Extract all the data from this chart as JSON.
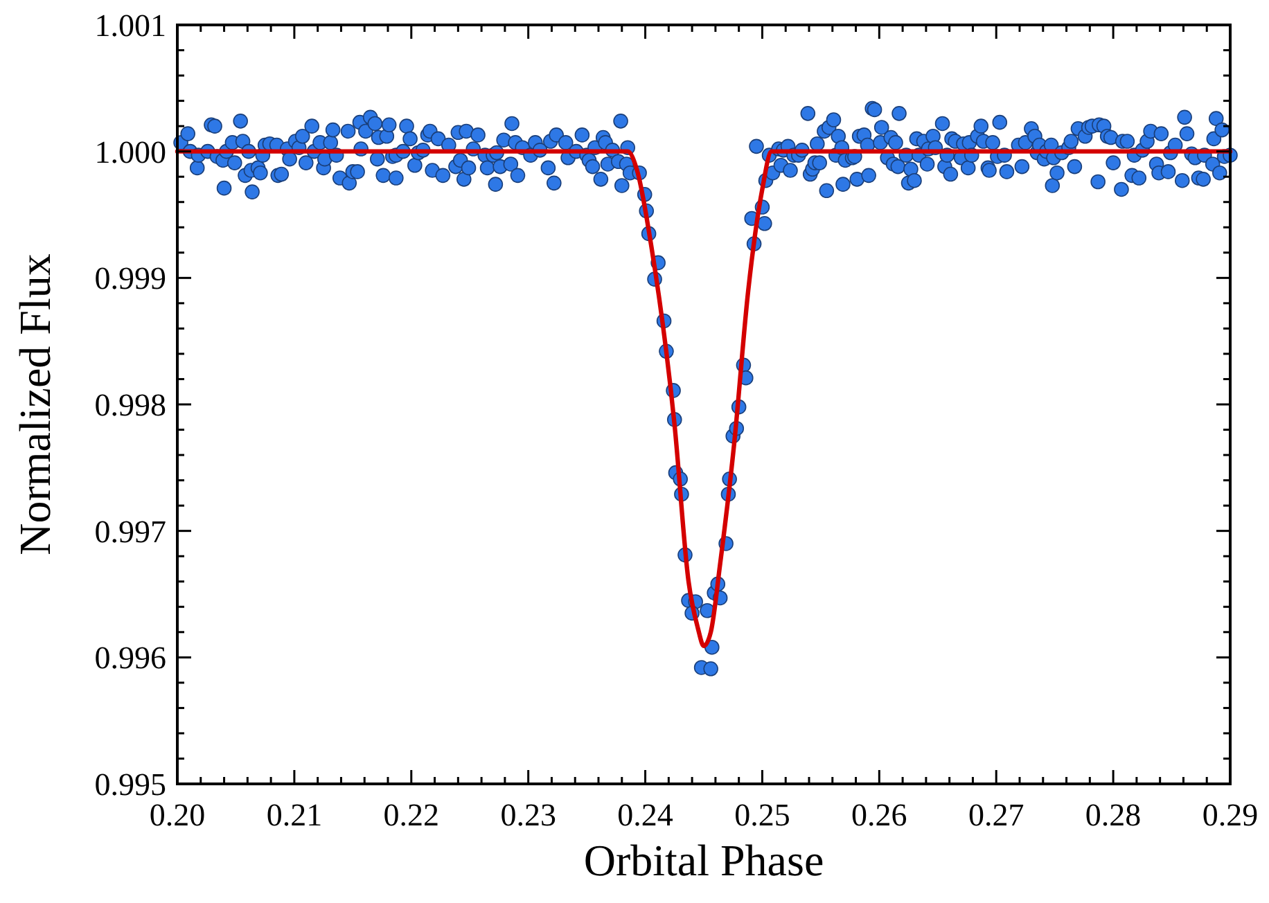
{
  "chart_data": {
    "type": "scatter",
    "xlabel": "Orbital Phase",
    "ylabel": "Normalized Flux",
    "xlim": [
      0.2,
      0.29
    ],
    "ylim": [
      0.995,
      1.001
    ],
    "xticks": [
      {
        "value": 0.2,
        "label": "0.20"
      },
      {
        "value": 0.202,
        "label": null
      },
      {
        "value": 0.204,
        "label": null
      },
      {
        "value": 0.206,
        "label": null
      },
      {
        "value": 0.208,
        "label": null
      },
      0.21,
      {
        "value": 0.212,
        "label": null
      },
      {
        "value": 0.214,
        "label": null
      },
      {
        "value": 0.216,
        "label": null
      },
      {
        "value": 0.218,
        "label": null
      },
      0.22,
      {
        "value": 0.222,
        "label": null
      },
      {
        "value": 0.224,
        "label": null
      },
      {
        "value": 0.226,
        "label": null
      },
      {
        "value": 0.228,
        "label": null
      },
      0.23,
      {
        "value": 0.232,
        "label": null
      },
      {
        "value": 0.234,
        "label": null
      },
      {
        "value": 0.236,
        "label": null
      },
      {
        "value": 0.238,
        "label": null
      },
      0.24,
      {
        "value": 0.242,
        "label": null
      },
      {
        "value": 0.244,
        "label": null
      },
      {
        "value": 0.246,
        "label": null
      },
      {
        "value": 0.248,
        "label": null
      },
      0.25,
      {
        "value": 0.252,
        "label": null
      },
      {
        "value": 0.254,
        "label": null
      },
      {
        "value": 0.256,
        "label": null
      },
      {
        "value": 0.258,
        "label": null
      },
      0.26,
      {
        "value": 0.262,
        "label": null
      },
      {
        "value": 0.264,
        "label": null
      },
      {
        "value": 0.266,
        "label": null
      },
      {
        "value": 0.268,
        "label": null
      },
      0.27,
      {
        "value": 0.272,
        "label": null
      },
      {
        "value": 0.274,
        "label": null
      },
      {
        "value": 0.276,
        "label": null
      },
      {
        "value": 0.278,
        "label": null
      },
      0.28,
      {
        "value": 0.282,
        "label": null
      },
      {
        "value": 0.284,
        "label": null
      },
      {
        "value": 0.286,
        "label": null
      },
      {
        "value": 0.288,
        "label": null
      },
      0.29
    ],
    "yticks": [
      0.995,
      {
        "value": 0.9952,
        "label": null
      },
      {
        "value": 0.9954,
        "label": null
      },
      {
        "value": 0.9956,
        "label": null
      },
      {
        "value": 0.9958,
        "label": null
      },
      0.996,
      {
        "value": 0.9962,
        "label": null
      },
      {
        "value": 0.9964,
        "label": null
      },
      {
        "value": 0.9966,
        "label": null
      },
      {
        "value": 0.9968,
        "label": null
      },
      0.997,
      {
        "value": 0.9972,
        "label": null
      },
      {
        "value": 0.9974,
        "label": null
      },
      {
        "value": 0.9976,
        "label": null
      },
      {
        "value": 0.9978,
        "label": null
      },
      0.998,
      {
        "value": 0.9982,
        "label": null
      },
      {
        "value": 0.9984,
        "label": null
      },
      {
        "value": 0.9986,
        "label": null
      },
      {
        "value": 0.9988,
        "label": null
      },
      0.999,
      {
        "value": 0.9992,
        "label": null
      },
      {
        "value": 0.9994,
        "label": null
      },
      {
        "value": 0.9996,
        "label": null
      },
      {
        "value": 0.9998,
        "label": null
      },
      {
        "value": 1.0,
        "label": "1.000"
      },
      {
        "value": 1.0002,
        "label": null
      },
      {
        "value": 1.0004,
        "label": null
      },
      {
        "value": 1.0006,
        "label": null
      },
      {
        "value": 1.0008,
        "label": null
      },
      1.001
    ],
    "grid": false,
    "marker": "circle",
    "series": [
      {
        "type": "scatter",
        "color": "#2e78e6",
        "x": [
          0.2003,
          0.2009,
          0.2011,
          0.2017,
          0.2018,
          0.2026,
          0.2029,
          0.2032,
          0.2034,
          0.204,
          0.2039,
          0.2042,
          0.2047,
          0.2049,
          0.2054,
          0.2056,
          0.2058,
          0.2061,
          0.2063,
          0.2064,
          0.2069,
          0.2071,
          0.2073,
          0.2075,
          0.2079,
          0.2085,
          0.2086,
          0.2089,
          0.2094,
          0.2096,
          0.2101,
          0.2104,
          0.2107,
          0.211,
          0.2115,
          0.2117,
          0.2122,
          0.2125,
          0.2126,
          0.2131,
          0.2133,
          0.2136,
          0.2139,
          0.2146,
          0.2147,
          0.215,
          0.2154,
          0.2156,
          0.2157,
          0.2161,
          0.2165,
          0.2169,
          0.2171,
          0.2172,
          0.2176,
          0.2179,
          0.2181,
          0.2184,
          0.2187,
          0.2187,
          0.2193,
          0.2196,
          0.2199,
          0.2203,
          0.2206,
          0.221,
          0.2214,
          0.2216,
          0.2218,
          0.2223,
          0.2227,
          0.2232,
          0.2238,
          0.224,
          0.2242,
          0.2245,
          0.2247,
          0.2249,
          0.2253,
          0.2257,
          0.2263,
          0.2265,
          0.227,
          0.2272,
          0.2273,
          0.2276,
          0.2279,
          0.2285,
          0.2286,
          0.2289,
          0.2291,
          0.2295,
          0.2302,
          0.2306,
          0.231,
          0.2317,
          0.2319,
          0.2322,
          0.2324,
          0.2332,
          0.2334,
          0.2341,
          0.2346,
          0.235,
          0.2352,
          0.2355,
          0.2357,
          0.2362,
          0.2364,
          0.2366,
          0.2368,
          0.2372,
          0.2377,
          0.2379,
          0.238,
          0.2384,
          0.2385,
          0.2387,
          0.2395,
          0.23995,
          0.2401,
          0.2403,
          0.2411,
          0.2408,
          0.2416,
          0.2418,
          0.2424,
          0.2425,
          0.2426,
          0.243,
          0.2431,
          0.2434,
          0.2437,
          0.2443,
          0.244,
          0.2453,
          0.2457,
          0.2448,
          0.2456,
          0.2459,
          0.2462,
          0.2464,
          0.2469,
          0.2471,
          0.2472,
          0.2475,
          0.2478,
          0.248,
          0.2484,
          0.2486,
          0.2493,
          0.2491,
          0.2502,
          0.25,
          0.2503,
          0.2495,
          0.2506,
          0.2509,
          0.2514,
          0.2516,
          0.2518,
          0.2522,
          0.2524,
          0.2527,
          0.2531,
          0.2534,
          0.2539,
          0.2541,
          0.2543,
          0.2545,
          0.2547,
          0.2549,
          0.2553,
          0.2555,
          0.2557,
          0.2561,
          0.2563,
          0.2565,
          0.2568,
          0.2569,
          0.2571,
          0.2577,
          0.2579,
          0.2581,
          0.2583,
          0.2587,
          0.259,
          0.2591,
          0.2594,
          0.2596,
          0.2602,
          0.2601,
          0.2607,
          0.261,
          0.2612,
          0.2614,
          0.2617,
          0.2616,
          0.2623,
          0.2625,
          0.2627,
          0.263,
          0.2632,
          0.2634,
          0.2638,
          0.2641,
          0.2642,
          0.2646,
          0.2648,
          0.2654,
          0.2656,
          0.2658,
          0.2661,
          0.2662,
          0.2665,
          0.267,
          0.2672,
          0.2676,
          0.2677,
          0.2679,
          0.2684,
          0.2687,
          0.2689,
          0.2693,
          0.2694,
          0.2697,
          0.2701,
          0.2703,
          0.2707,
          0.2709,
          0.2719,
          0.2722,
          0.2725,
          0.273,
          0.2733,
          0.2735,
          0.2737,
          0.2741,
          0.2743,
          0.2747,
          0.2748,
          0.2749,
          0.2752,
          0.2756,
          0.2762,
          0.2764,
          0.2767,
          0.277,
          0.2776,
          0.2779,
          0.2782,
          0.2787,
          0.2788,
          0.2792,
          0.2795,
          0.2798,
          0.28,
          0.2807,
          0.2808,
          0.2812,
          0.2816,
          0.2818,
          0.2822,
          0.2825,
          0.2829,
          0.2832,
          0.2837,
          0.2839,
          0.2841,
          0.2847,
          0.2849,
          0.2853,
          0.2859,
          0.2861,
          0.2863,
          0.2867,
          0.287,
          0.2873,
          0.2877,
          0.2878,
          0.2885,
          0.2886,
          0.2888,
          0.2891,
          0.2893,
          0.2895,
          0.29
        ],
        "values": [
          1.00007,
          1.00014,
          1.0,
          0.99987,
          0.99997,
          1.0,
          1.00021,
          1.0002,
          0.99996,
          0.99971,
          0.99993,
          1.0,
          1.00007,
          0.99991,
          1.00024,
          1.00008,
          0.99981,
          1.0,
          0.99985,
          0.99968,
          0.99987,
          0.99983,
          0.99997,
          1.00005,
          1.00006,
          1.00005,
          0.99981,
          0.99982,
          1.00002,
          0.99994,
          1.00008,
          1.00003,
          1.00012,
          0.99991,
          1.0002,
          1.0,
          1.00007,
          0.99987,
          0.99994,
          1.00007,
          1.00017,
          0.99997,
          0.99979,
          1.00016,
          0.99975,
          0.99984,
          0.99984,
          1.00023,
          1.00002,
          1.00016,
          1.00027,
          1.00022,
          0.99994,
          1.00011,
          0.99981,
          1.00012,
          1.00021,
          0.99996,
          0.99997,
          0.99979,
          1.0,
          1.0002,
          1.0001,
          0.99989,
          0.99999,
          1.00001,
          1.00013,
          1.00016,
          0.99985,
          1.0001,
          0.99981,
          1.00005,
          0.99988,
          1.00015,
          0.99993,
          0.99978,
          1.00016,
          0.99987,
          1.00002,
          1.00013,
          0.99997,
          0.99987,
          0.99997,
          0.99974,
          0.99999,
          0.99988,
          1.00009,
          0.9999,
          1.00022,
          1.00007,
          0.99981,
          1.00003,
          0.99997,
          1.00007,
          1.00001,
          0.99987,
          1.00008,
          0.99975,
          1.00013,
          1.00007,
          0.99995,
          1.0,
          1.00013,
          0.99997,
          0.99993,
          0.99988,
          1.00003,
          0.99978,
          1.00011,
          1.00007,
          0.9999,
          1.00001,
          0.99992,
          1.00024,
          0.99973,
          0.9999,
          1.00003,
          0.99983,
          0.99983,
          0.99966,
          0.99953,
          0.99935,
          0.99912,
          0.99899,
          0.99866,
          0.99842,
          0.99811,
          0.99788,
          0.99746,
          0.99741,
          0.99729,
          0.99681,
          0.99645,
          0.99644,
          0.99635,
          0.99637,
          0.99608,
          0.99592,
          0.99591,
          0.99651,
          0.99658,
          0.99647,
          0.9969,
          0.99729,
          0.99741,
          0.99775,
          0.99781,
          0.99798,
          0.99831,
          0.99821,
          0.99927,
          0.99947,
          0.99943,
          0.99956,
          0.99977,
          1.00004,
          0.99997,
          0.99983,
          1.00002,
          0.99989,
          1.00001,
          1.00004,
          0.99985,
          0.99997,
          0.99997,
          1.00001,
          1.0003,
          0.99982,
          0.99986,
          0.99991,
          1.00006,
          0.99991,
          1.00016,
          0.99969,
          1.00019,
          1.00025,
          0.99997,
          1.00012,
          1.00003,
          0.99974,
          0.99993,
          0.99995,
          0.99996,
          0.99978,
          1.00012,
          1.00013,
          1.00005,
          0.99981,
          1.00034,
          1.00033,
          1.00019,
          1.00007,
          0.99995,
          1.00011,
          0.9999,
          1.00007,
          1.0003,
          0.99988,
          0.99997,
          0.99975,
          0.99986,
          0.99977,
          1.0001,
          0.99997,
          1.00008,
          0.9999,
          1.00002,
          1.00012,
          1.00003,
          1.00022,
          0.99988,
          0.99997,
          0.99982,
          1.0001,
          1.00008,
          0.99995,
          1.00006,
          0.99987,
          1.00007,
          0.99997,
          1.00012,
          1.0002,
          1.00008,
          0.99987,
          0.99985,
          1.00007,
          0.99996,
          1.00023,
          0.99997,
          0.99984,
          1.00005,
          0.99988,
          1.00007,
          1.00018,
          1.00012,
          0.99999,
          1.00005,
          0.99994,
          1.0,
          1.00005,
          0.99973,
          0.99995,
          0.99983,
          0.99999,
          1.00003,
          1.00008,
          0.99988,
          1.00018,
          1.00012,
          1.00019,
          1.0002,
          0.99976,
          1.00021,
          1.0002,
          1.00012,
          1.00011,
          0.99991,
          0.9997,
          1.00008,
          1.00008,
          0.99981,
          0.99997,
          0.99979,
          1.00001,
          1.00008,
          1.00016,
          0.9999,
          0.99983,
          1.00014,
          0.99984,
          0.99999,
          1.00005,
          0.99977,
          1.00027,
          1.00014,
          0.99998,
          0.99995,
          0.99979,
          0.99978,
          0.99997,
          0.9999,
          1.0001,
          1.00026,
          0.99983,
          1.00017,
          0.99996,
          0.99997
        ]
      },
      {
        "type": "line",
        "color": "#d40000",
        "marker": "none",
        "line_style": "solid",
        "x": [
          0.2,
          0.2385,
          0.2393,
          0.2405,
          0.2425,
          0.2437,
          0.2445,
          0.245,
          0.2456,
          0.2464,
          0.2476,
          0.2488,
          0.25,
          0.2508,
          0.29
        ],
        "values": [
          1.0,
          1.0,
          0.99985,
          0.99926,
          0.99784,
          0.9966,
          0.99623,
          0.99609,
          0.9962,
          0.99674,
          0.99769,
          0.9989,
          0.9997,
          1.0,
          1.0
        ]
      }
    ]
  }
}
